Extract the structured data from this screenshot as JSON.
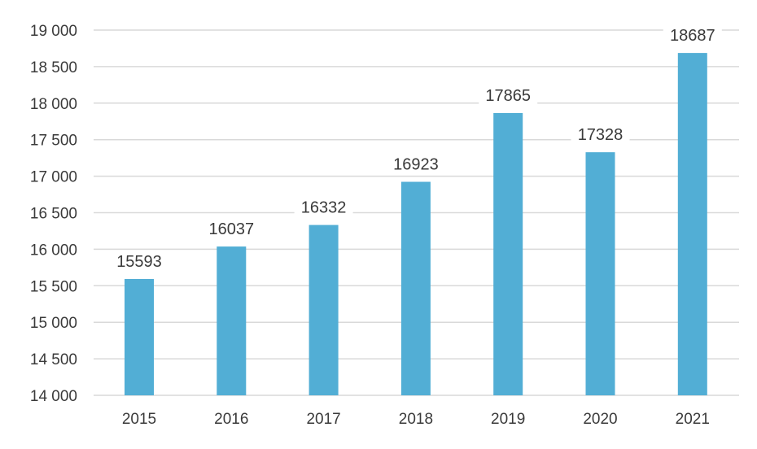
{
  "chart_data": {
    "type": "bar",
    "title": "",
    "xlabel": "",
    "ylabel": "",
    "categories": [
      "2015",
      "2016",
      "2017",
      "2018",
      "2019",
      "2020",
      "2021"
    ],
    "values": [
      15593,
      16037,
      16332,
      16923,
      17865,
      17328,
      18687
    ],
    "data_labels": [
      "15593",
      "16037",
      "16332",
      "16923",
      "17865",
      "17328",
      "18687"
    ],
    "ylim": [
      14000,
      19000
    ],
    "yticks": [
      14000,
      14500,
      15000,
      15500,
      16000,
      16500,
      17000,
      17500,
      18000,
      18500,
      19000
    ],
    "ytick_labels": [
      "14 000",
      "14 500",
      "15 000",
      "15 500",
      "16 000",
      "16 500",
      "17 000",
      "17 500",
      "18 000",
      "18 500",
      "19 000"
    ],
    "grid": true,
    "legend": "none",
    "bar_color": "#52AED5",
    "grid_color": "#D9D9D9",
    "text_color": "#3A3A3A"
  }
}
